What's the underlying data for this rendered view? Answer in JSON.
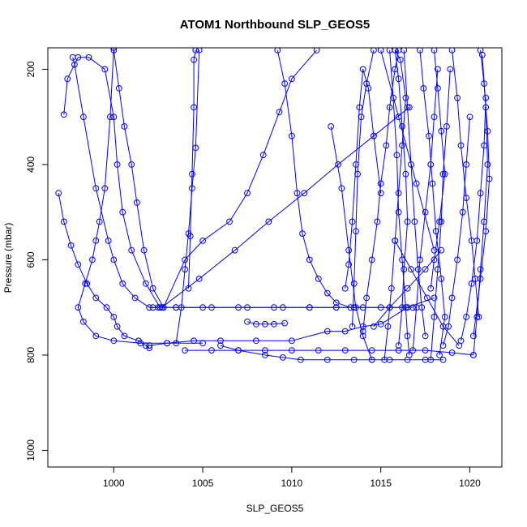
{
  "chart_data": {
    "type": "line",
    "title": "ATOM1 Northbound SLP_GEOS5",
    "xlabel": "SLP_GEOS5",
    "ylabel": "Pressure (mbar)",
    "xlim": [
      996.3,
      1021.8
    ],
    "ylim": [
      1035,
      155
    ],
    "y_inverted": true,
    "x_ticks": [
      1000,
      1005,
      1010,
      1015,
      1020
    ],
    "y_ticks": [
      200,
      400,
      600,
      800,
      1000
    ],
    "line_color": "#0000ff",
    "marker": "open-circle",
    "series": [
      {
        "x": [
          997.7,
          997.8,
          998.3,
          999.0,
          999.7,
          1000.0,
          1000.5,
          1001.2,
          1002.0,
          1002.5
        ],
        "y": [
          175,
          190,
          300,
          450,
          560,
          600,
          650,
          680,
          700,
          700
        ]
      },
      {
        "x": [
          1000.0,
          999.8,
          999.5,
          999.2,
          999.0,
          998.8,
          998.4,
          998.0,
          998.3,
          999.0,
          1000.0,
          1001.5,
          1003.0,
          1005.0
        ],
        "y": [
          155,
          300,
          450,
          520,
          560,
          600,
          650,
          700,
          730,
          760,
          770,
          775,
          775,
          775
        ]
      },
      {
        "x": [
          996.9,
          997.2,
          997.6,
          998.0,
          998.5,
          999.0,
          999.6,
          1000.0,
          1000.2,
          1000.6,
          1001.4,
          1001.8,
          1002.0
        ],
        "y": [
          460,
          520,
          570,
          610,
          650,
          680,
          700,
          720,
          740,
          760,
          770,
          780,
          785
        ]
      },
      {
        "x": [
          997.2,
          997.4,
          998.0,
          998.6,
          999.5,
          1000.0,
          1000.2,
          1000.5,
          1001.0,
          1001.8,
          1002.6
        ],
        "y": [
          295,
          220,
          175,
          175,
          200,
          300,
          400,
          500,
          580,
          650,
          700
        ]
      },
      {
        "x": [
          1000.0,
          1000.3,
          1000.6,
          1001.0,
          1001.3,
          1001.7,
          1002.2,
          1002.8,
          1003.5,
          1005.0,
          1007.0,
          1009.0,
          1011.0,
          1012.5,
          1013.5,
          1015.0,
          1016.5
        ],
        "y": [
          160,
          240,
          320,
          400,
          480,
          580,
          660,
          700,
          700,
          700,
          700,
          700,
          700,
          700,
          700,
          700,
          700
        ]
      },
      {
        "x": [
          1003.5,
          1003.8,
          1004.0,
          1004.2,
          1004.4,
          1004.6,
          1004.8
        ],
        "y": [
          775,
          700,
          620,
          545,
          450,
          365,
          160
        ]
      },
      {
        "x": [
          1004.2,
          1004.3,
          1004.4,
          1004.5,
          1004.5,
          1004.6
        ],
        "y": [
          660,
          550,
          420,
          280,
          180,
          160
        ]
      },
      {
        "x": [
          1002.0,
          1003.0,
          1004.5,
          1006.0,
          1008.0,
          1010.0,
          1012.0,
          1013.0,
          1014.0,
          1015.0,
          1016.5,
          1018.0
        ],
        "y": [
          780,
          775,
          770,
          770,
          770,
          770,
          750,
          750,
          740,
          735,
          700,
          680
        ]
      },
      {
        "x": [
          1002.2,
          1003.5,
          1005.5,
          1007.5,
          1009.5,
          1011.0,
          1012.5,
          1014.0,
          1015.5,
          1016.8
        ],
        "y": [
          700,
          700,
          700,
          700,
          700,
          700,
          700,
          700,
          700,
          700
        ]
      },
      {
        "x": [
          1004.0,
          1005.5,
          1007.0,
          1008.5,
          1010.0,
          1011.5,
          1013.0,
          1014.5,
          1016.0,
          1017.5,
          1019.0,
          1020.2
        ],
        "y": [
          790,
          790,
          790,
          790,
          790,
          790,
          790,
          790,
          790,
          790,
          795,
          800
        ]
      },
      {
        "x": [
          1006.0,
          1007.0,
          1008.5,
          1009.5,
          1010.5,
          1012.0,
          1013.5,
          1014.5,
          1015.5,
          1016.5,
          1017.5,
          1018.5
        ],
        "y": [
          780,
          790,
          800,
          805,
          810,
          810,
          810,
          810,
          810,
          810,
          810,
          810
        ]
      },
      {
        "x": [
          1002.8,
          1004.0,
          1005.0,
          1006.5,
          1007.5,
          1008.4,
          1009.3,
          1010.0,
          1011.4
        ],
        "y": [
          700,
          600,
          560,
          520,
          460,
          380,
          290,
          220,
          160
        ]
      },
      {
        "x": [
          1002.7,
          1004.8,
          1006.8,
          1008.7,
          1010.7,
          1012.6,
          1014.6,
          1016.6
        ],
        "y": [
          700,
          640,
          580,
          520,
          460,
          400,
          340,
          280
        ]
      },
      {
        "x": [
          1009.2,
          1009.6,
          1010.0,
          1010.3,
          1010.6,
          1011.0,
          1011.5,
          1012.0,
          1012.5,
          1013.3
        ],
        "y": [
          160,
          230,
          340,
          460,
          545,
          600,
          640,
          670,
          690,
          700
        ]
      },
      {
        "x": [
          1007.5,
          1008.0,
          1008.5,
          1009.0,
          1009.6
        ],
        "y": [
          730,
          735,
          735,
          735,
          733
        ]
      },
      {
        "x": [
          1012.2,
          1012.8,
          1013.2,
          1013.6,
          1014.0,
          1014.5
        ],
        "y": [
          320,
          450,
          580,
          700,
          760,
          810
        ]
      },
      {
        "x": [
          1013.0,
          1013.2,
          1013.4,
          1013.6,
          1013.8,
          1014.0,
          1014.3,
          1014.6,
          1015.0
        ],
        "y": [
          660,
          610,
          520,
          400,
          280,
          200,
          240,
          340,
          460
        ]
      },
      {
        "x": [
          1013.4,
          1013.5,
          1013.6,
          1013.7,
          1013.9,
          1014.2,
          1014.6
        ],
        "y": [
          740,
          650,
          540,
          420,
          300,
          230,
          160
        ]
      },
      {
        "x": [
          1014.0,
          1014.2,
          1014.5,
          1014.8,
          1015.0,
          1015.3,
          1015.5,
          1015.8,
          1016.0
        ],
        "y": [
          750,
          680,
          600,
          520,
          440,
          360,
          280,
          200,
          160
        ]
      },
      {
        "x": [
          1015.2,
          1015.4,
          1015.6,
          1015.8,
          1016.0,
          1016.2,
          1016.4,
          1016.1,
          1015.8
        ],
        "y": [
          810,
          740,
          660,
          560,
          460,
          360,
          260,
          180,
          160
        ]
      },
      {
        "x": [
          1015.5,
          1015.7,
          1015.9,
          1016.0,
          1016.2,
          1016.4,
          1016.5,
          1016.6
        ],
        "y": [
          160,
          260,
          380,
          500,
          600,
          700,
          760,
          800
        ]
      },
      {
        "x": [
          1016.0,
          1016.2,
          1016.3,
          1016.5,
          1016.4,
          1016.2,
          1016.0,
          1015.8
        ],
        "y": [
          780,
          700,
          620,
          520,
          420,
          320,
          220,
          160
        ]
      },
      {
        "x": [
          1016.3,
          1016.5,
          1016.7,
          1016.9,
          1017.1,
          1017.3,
          1017.5
        ],
        "y": [
          160,
          280,
          400,
          520,
          620,
          700,
          760
        ]
      },
      {
        "x": [
          1016.8,
          1017.0,
          1017.2,
          1017.5,
          1017.8,
          1018.0,
          1018.2
        ],
        "y": [
          790,
          700,
          600,
          500,
          400,
          300,
          200
        ]
      },
      {
        "x": [
          1017.2,
          1017.4,
          1017.7,
          1017.9,
          1018.1,
          1018.4,
          1018.6,
          1018.3
        ],
        "y": [
          160,
          240,
          340,
          440,
          540,
          640,
          720,
          800
        ]
      },
      {
        "x": [
          1017.8,
          1018.0,
          1018.2,
          1018.4,
          1018.5,
          1018.7,
          1018.9
        ],
        "y": [
          810,
          720,
          620,
          520,
          420,
          320,
          200
        ]
      },
      {
        "x": [
          1018.0,
          1018.2,
          1018.4,
          1018.6,
          1018.3,
          1018.0,
          1017.8
        ],
        "y": [
          160,
          240,
          330,
          420,
          520,
          600,
          660
        ]
      },
      {
        "x": [
          1018.5,
          1018.8,
          1019.0,
          1019.3,
          1019.6,
          1019.8,
          1020.0
        ],
        "y": [
          780,
          740,
          680,
          600,
          500,
          400,
          300
        ]
      },
      {
        "x": [
          1019.0,
          1019.3,
          1019.5,
          1019.8,
          1020.1,
          1020.3,
          1020.5
        ],
        "y": [
          160,
          260,
          360,
          470,
          560,
          640,
          720
        ]
      },
      {
        "x": [
          1019.5,
          1019.8,
          1020.1,
          1020.4,
          1020.6,
          1020.8,
          1020.9
        ],
        "y": [
          770,
          720,
          650,
          560,
          460,
          360,
          260
        ]
      },
      {
        "x": [
          1020.2,
          1020.4,
          1020.6,
          1020.8,
          1021.0,
          1020.9,
          1020.7
        ],
        "y": [
          800,
          720,
          620,
          520,
          400,
          280,
          170
        ]
      },
      {
        "x": [
          1020.6,
          1020.8,
          1021.0,
          1021.1,
          1020.9,
          1020.6,
          1020.2
        ],
        "y": [
          160,
          230,
          330,
          430,
          540,
          640,
          760
        ]
      },
      {
        "x": [
          1014.6,
          1015.5,
          1016.5,
          1017.5,
          1018.4
        ],
        "y": [
          740,
          700,
          660,
          620,
          580
        ]
      },
      {
        "x": [
          1015.0,
          1016.0,
          1017.0,
          1018.0
        ],
        "y": [
          160,
          300,
          440,
          580
        ]
      },
      {
        "x": [
          1015.8,
          1016.7,
          1017.6,
          1018.5,
          1019.4
        ],
        "y": [
          560,
          620,
          680,
          740,
          780
        ]
      }
    ]
  }
}
